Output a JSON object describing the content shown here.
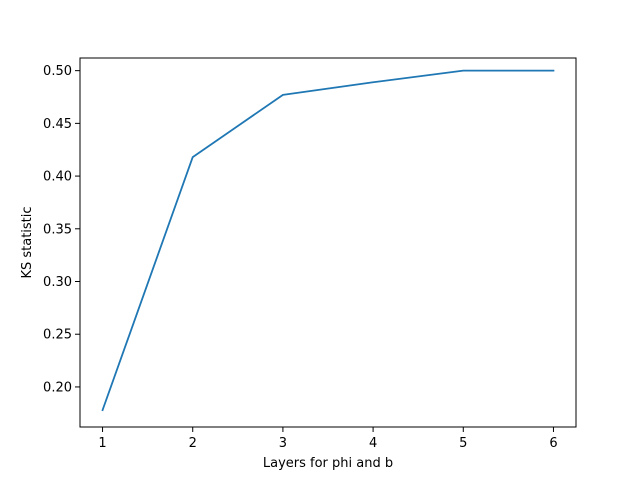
{
  "chart_data": {
    "type": "line",
    "title": "",
    "xlabel": "Layers for phi and b",
    "ylabel": "KS statistic",
    "x": [
      1,
      2,
      3,
      4,
      5,
      6
    ],
    "series": [
      {
        "values": [
          0.178,
          0.418,
          0.477,
          0.489,
          0.5,
          0.5
        ],
        "color": "#1f77b4"
      }
    ],
    "xlim": [
      0.75,
      6.25
    ],
    "ylim": [
      0.162,
      0.512
    ],
    "xticks": [
      1,
      2,
      3,
      4,
      5,
      6
    ],
    "xtick_labels": [
      "1",
      "2",
      "3",
      "4",
      "5",
      "6"
    ],
    "yticks": [
      0.2,
      0.25,
      0.3,
      0.35,
      0.4,
      0.45,
      0.5
    ],
    "ytick_labels": [
      "0.20",
      "0.25",
      "0.30",
      "0.35",
      "0.40",
      "0.45",
      "0.50"
    ],
    "grid": false,
    "legend": false
  }
}
